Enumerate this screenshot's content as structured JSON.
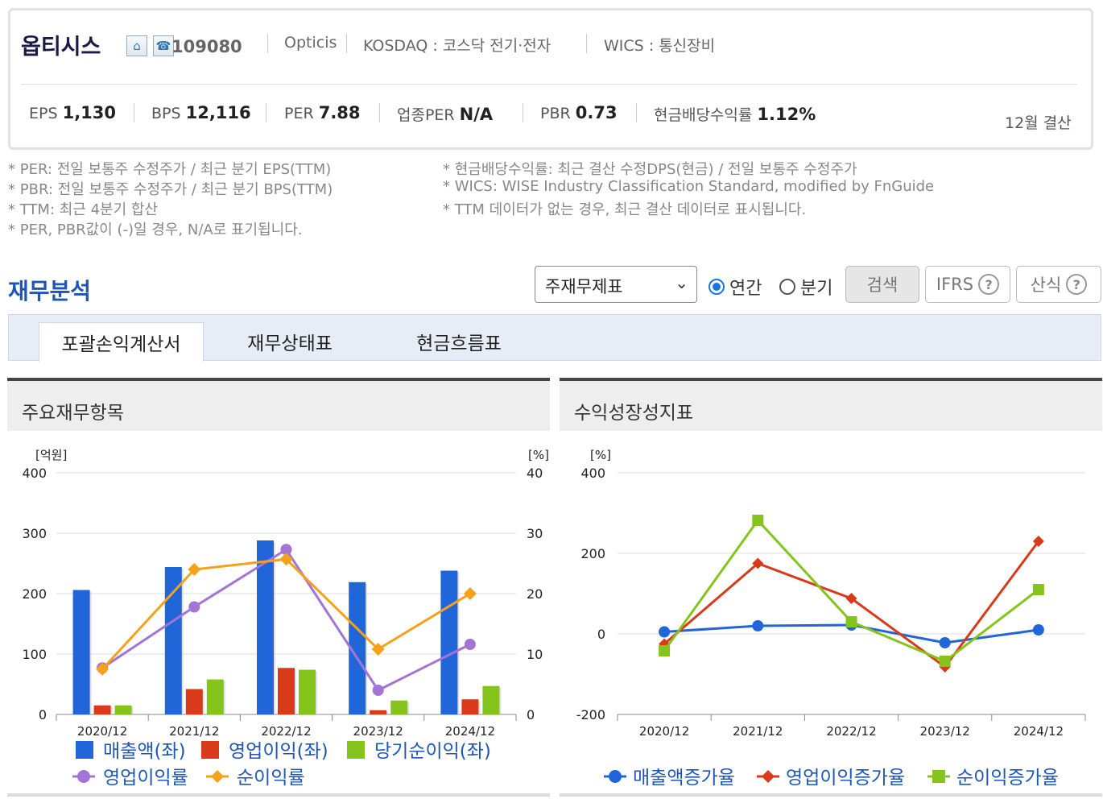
{
  "header": {
    "company_name": "옵티시스",
    "code": "109080",
    "eng_name": "Opticis",
    "market": "KOSDAQ : 코스닥 전기·전자",
    "wics": "WICS : 통신장비",
    "stats": [
      {
        "label": "EPS",
        "value": "1,130"
      },
      {
        "label": "BPS",
        "value": "12,116"
      },
      {
        "label": "PER",
        "value": "7.88"
      },
      {
        "label": "업종PER",
        "value": "N/A"
      },
      {
        "label": "PBR",
        "value": "0.73"
      },
      {
        "label": "현금배당수익률",
        "value": "1.12%"
      }
    ],
    "settlement": "12월 결산"
  },
  "notes_left": [
    {
      "key": "PER",
      "text": ": 전일 보통주 수정주가 / 최근 분기 EPS(TTM)"
    },
    {
      "key": "PBR",
      "text": ": 전일 보통주 수정주가 / 최근 분기 BPS(TTM)"
    },
    {
      "key": "TTM",
      "text": ": 최근 4분기 합산"
    },
    {
      "key": "",
      "text": "PER, PBR값이 (-)일 경우, N/A로 표기됩니다."
    }
  ],
  "notes_right": [
    {
      "key": "현금배당수익률",
      "text": ": 최근 결산 수정DPS(현금) / 전일 보통주 수정주가"
    },
    {
      "key": "WICS",
      "text": ": WISE Industry Classification Standard, modified by FnGuide"
    },
    {
      "key": "",
      "text": "TTM 데이터가 없는 경우, 최근 결산 데이터로 표시됩니다."
    }
  ],
  "section_title": "재무분석",
  "controls": {
    "select_value": "주재무제표",
    "radio_annual": "연간",
    "radio_quarter": "분기",
    "search_btn": "검색",
    "ifrs_btn": "IFRS",
    "formula_btn": "산식"
  },
  "tabs": [
    "포괄손익계산서",
    "재무상태표",
    "현금흐름표"
  ],
  "panel_left_title": "주요재무항목",
  "panel_right_title": "수익성장성지표",
  "chart_data": [
    {
      "type": "bar+line",
      "title": "주요재무항목",
      "categories": [
        "2020/12",
        "2021/12",
        "2022/12",
        "2023/12",
        "2024/12"
      ],
      "y_left_unit": "[억원]",
      "y_right_unit": "[%]",
      "y_left_lim": [
        0,
        400
      ],
      "y_right_lim": [
        0,
        40
      ],
      "y_left_ticks": [
        "0",
        "100",
        "200",
        "300",
        "400"
      ],
      "y_right_ticks": [
        "0",
        "10",
        "20",
        "30",
        "40"
      ],
      "bar_series": [
        {
          "name": "매출액(좌)",
          "color": "#2166d8",
          "values": [
            206,
            244,
            288,
            219,
            238
          ]
        },
        {
          "name": "영업이익(좌)",
          "color": "#d83a1a",
          "values": [
            15,
            42,
            77,
            7,
            25
          ]
        },
        {
          "name": "당기순이익(좌)",
          "color": "#84c41c",
          "values": [
            15,
            58,
            74,
            23,
            47
          ]
        }
      ],
      "line_series": [
        {
          "name": "영업이익률",
          "color": "#a274d6",
          "marker": "circle",
          "values": [
            7.7,
            17.8,
            27.3,
            4,
            11.6
          ]
        },
        {
          "name": "순이익률",
          "color": "#f5a11c",
          "marker": "diamond",
          "values": [
            7.5,
            24,
            25.7,
            10.8,
            20
          ]
        }
      ],
      "grid": true,
      "legend": "bottom"
    },
    {
      "type": "line",
      "title": "수익성장성지표",
      "categories": [
        "2020/12",
        "2021/12",
        "2022/12",
        "2023/12",
        "2024/12"
      ],
      "y_unit": "[%]",
      "ylim": [
        -200,
        400
      ],
      "y_ticks": [
        "-200",
        "0",
        "200",
        "400"
      ],
      "series": [
        {
          "name": "매출액증가율",
          "color": "#2166d8",
          "marker": "circle",
          "values": [
            5,
            20,
            22,
            -22,
            10
          ]
        },
        {
          "name": "영업이익증가율",
          "color": "#d83a1a",
          "marker": "diamond",
          "values": [
            -25,
            175,
            88,
            -82,
            230
          ]
        },
        {
          "name": "순이익증가율",
          "color": "#84c41c",
          "marker": "square",
          "values": [
            -42,
            282,
            30,
            -68,
            110
          ]
        }
      ],
      "grid": true,
      "legend": "bottom"
    }
  ]
}
